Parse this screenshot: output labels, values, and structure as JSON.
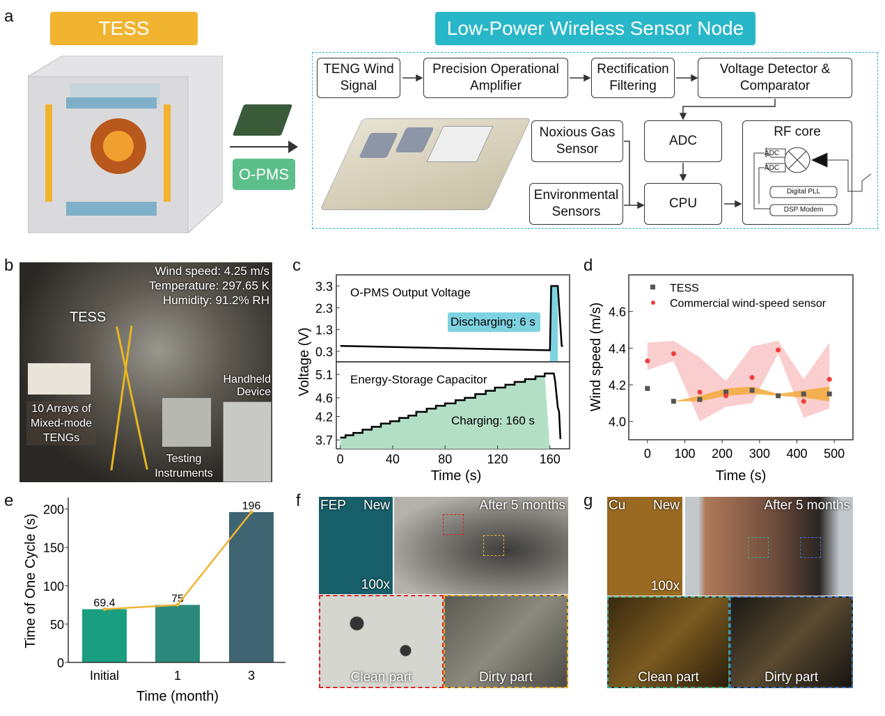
{
  "panels": {
    "a": "a",
    "b": "b",
    "c": "c",
    "d": "d",
    "e": "e",
    "f": "f",
    "g": "g"
  },
  "a": {
    "tess_title": "TESS",
    "node_title": "Low-Power Wireless Sensor Node",
    "opms": "O-PMS",
    "colors": {
      "tess": "#f0b431",
      "node": "#28b7c9",
      "opms": "#5cbf8a"
    },
    "blocks": {
      "teng": "TENG Wind Signal",
      "amp": "Precision Operational Amplifier",
      "rect": "Rectification Filtering",
      "volt": "Voltage Detector & Comparator",
      "gas": "Noxious Gas Sensor",
      "env": "Environmental Sensors",
      "adc": "ADC",
      "cpu": "CPU",
      "rf": "RF core",
      "adc1": "ADC",
      "adc2": "ADC",
      "pll": "Digital PLL",
      "dsp": "DSP Modem"
    }
  },
  "b": {
    "wind": "Wind speed: 4.25 m/s",
    "temp": "Temperature: 297.65 K",
    "hum": "Humidity: 91.2% RH",
    "tess": "TESS",
    "handheld": "Handheld Device",
    "arrays": "10 Arrays of Mixed-mode TENGs",
    "testing": "Testing Instruments"
  },
  "chart_data": [
    {
      "type": "line",
      "panel": "c",
      "ylabel": "Voltage (V)",
      "xlabel": "Time (s)",
      "xlim": [
        -3,
        175
      ],
      "xticks": [
        0,
        40,
        80,
        120,
        160
      ],
      "subplots": [
        {
          "label": "O-PMS Output Voltage",
          "ylim": [
            -0.18,
            3.81
          ],
          "yticks": [
            0.3,
            1.3,
            2.3,
            3.3
          ],
          "annotation": "Discharging: 6 s",
          "shade": [
            160,
            166
          ],
          "shade_color": "#7fd3e0",
          "points": [
            [
              0,
              0.55
            ],
            [
              80,
              0.45
            ],
            [
              160,
              0.35
            ],
            [
              161,
              3.3
            ],
            [
              166,
              3.3
            ],
            [
              169,
              0.55
            ],
            [
              170,
              0.55
            ]
          ]
        },
        {
          "label": "Energy-Storage Capacitor",
          "ylim": [
            3.51,
            5.37
          ],
          "yticks": [
            3.7,
            4.2,
            4.6,
            5.1
          ],
          "annotation": "Charging: 160 s",
          "fill_color": "#b3dfc7",
          "points": [
            [
              0,
              3.75
            ],
            [
              4,
              3.75
            ],
            [
              4,
              3.8
            ],
            [
              10,
              3.8
            ],
            [
              10,
              3.85
            ],
            [
              17,
              3.85
            ],
            [
              17,
              3.92
            ],
            [
              24,
              3.92
            ],
            [
              24,
              3.98
            ],
            [
              31,
              3.98
            ],
            [
              31,
              4.05
            ],
            [
              38,
              4.05
            ],
            [
              38,
              4.1
            ],
            [
              45,
              4.1
            ],
            [
              45,
              4.17
            ],
            [
              52,
              4.17
            ],
            [
              52,
              4.22
            ],
            [
              58,
              4.22
            ],
            [
              58,
              4.3
            ],
            [
              66,
              4.3
            ],
            [
              66,
              4.37
            ],
            [
              73,
              4.37
            ],
            [
              73,
              4.43
            ],
            [
              80,
              4.43
            ],
            [
              80,
              4.48
            ],
            [
              88,
              4.48
            ],
            [
              88,
              4.55
            ],
            [
              95,
              4.55
            ],
            [
              95,
              4.6
            ],
            [
              103,
              4.6
            ],
            [
              103,
              4.68
            ],
            [
              111,
              4.68
            ],
            [
              111,
              4.75
            ],
            [
              118,
              4.75
            ],
            [
              118,
              4.82
            ],
            [
              126,
              4.82
            ],
            [
              126,
              4.88
            ],
            [
              133,
              4.88
            ],
            [
              133,
              4.94
            ],
            [
              141,
              4.94
            ],
            [
              141,
              5.0
            ],
            [
              149,
              5.0
            ],
            [
              149,
              5.06
            ],
            [
              156,
              5.06
            ],
            [
              156,
              5.12
            ],
            [
              163,
              5.12
            ],
            [
              164,
              4.95
            ],
            [
              166,
              4.4
            ],
            [
              167,
              4.3
            ],
            [
              168,
              3.72
            ]
          ]
        }
      ]
    },
    {
      "type": "scatter",
      "panel": "d",
      "xlabel": "Time (s)",
      "ylabel": "Wind speed (m/s)",
      "xlim": [
        -50,
        550
      ],
      "ylim": [
        3.9,
        4.8
      ],
      "xticks": [
        0,
        100,
        200,
        300,
        400,
        500
      ],
      "yticks": [
        4.0,
        4.2,
        4.4,
        4.6
      ],
      "legend": "top-left",
      "x": [
        0,
        70,
        140,
        210,
        280,
        350,
        418,
        487
      ],
      "series": [
        {
          "name": "TESS",
          "marker": "square",
          "color": "#555555",
          "values": [
            4.18,
            4.11,
            4.12,
            4.16,
            4.17,
            4.14,
            4.15,
            4.15
          ],
          "band_upper": [
            4.18,
            4.11,
            4.14,
            4.18,
            4.19,
            4.15,
            4.17,
            4.19
          ],
          "band_lower": [
            4.18,
            4.11,
            4.11,
            4.14,
            4.15,
            4.14,
            4.13,
            4.11
          ],
          "band_color": "#f2a93b"
        },
        {
          "name": "Commercial wind-speed sensor",
          "marker": "circle",
          "color": "#f03c3c",
          "values": [
            4.33,
            4.37,
            4.16,
            4.14,
            4.24,
            4.39,
            4.11,
            4.23
          ],
          "band_upper": [
            4.43,
            4.44,
            4.35,
            4.22,
            4.41,
            4.44,
            4.23,
            4.43
          ],
          "band_lower": [
            4.28,
            4.33,
            4.0,
            4.08,
            4.1,
            4.37,
            4.02,
            4.07
          ],
          "band_color": "#f9c9c9"
        }
      ]
    },
    {
      "type": "bar",
      "panel": "e",
      "xlabel": "Time (month)",
      "ylabel": "Time of One Cycle (s)",
      "categories": [
        "Initial",
        "1",
        "3"
      ],
      "values": [
        69.4,
        75,
        196
      ],
      "labels": [
        "69.4",
        "75",
        "196"
      ],
      "ylim": [
        0,
        200
      ],
      "ymax": 215,
      "yticks": [
        0,
        50,
        100,
        150,
        200
      ],
      "colors": [
        "#1a9e80",
        "#2b8a7c",
        "#3e6571"
      ],
      "line_color": "#f2b233"
    }
  ],
  "f": {
    "material": "FEP",
    "new": "New",
    "after": "After 5 months",
    "mag": "100x",
    "clean": "Clean part",
    "dirty": "Dirty part"
  },
  "g": {
    "material": "Cu",
    "new": "New",
    "after": "After 5 months",
    "mag": "100x",
    "clean": "Clean part",
    "dirty": "Dirty part"
  }
}
